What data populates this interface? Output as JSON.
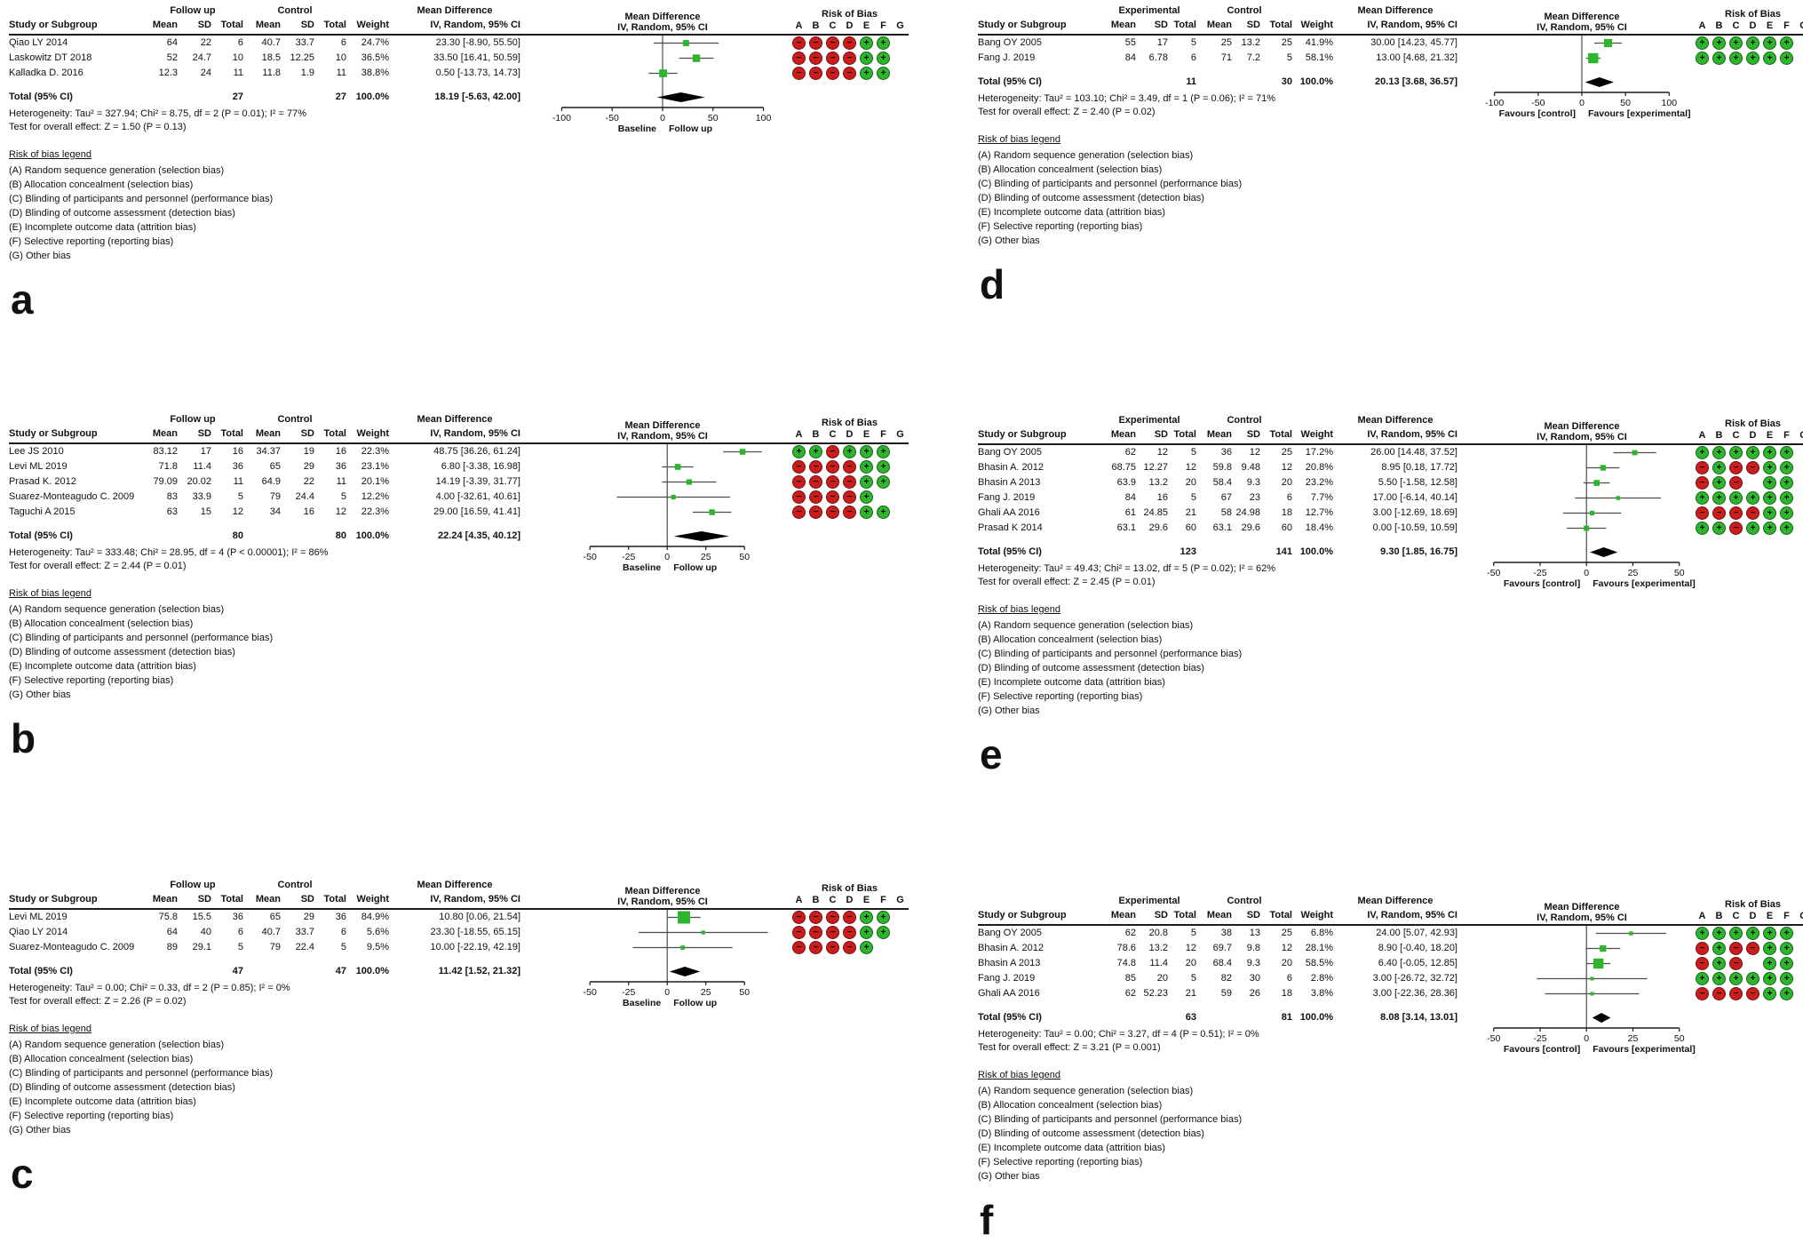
{
  "colors": {
    "square": "#2db52d",
    "ci_line": "#4d4d4d",
    "diamond": "#000000",
    "axis": "#1c1c1c",
    "rob_plus": "#2db52d",
    "rob_minus": "#cc1d1d"
  },
  "headers": {
    "study": "Study or Subgroup",
    "mean": "Mean",
    "sd": "SD",
    "total": "Total",
    "weight": "Weight",
    "effect1": "Mean Difference",
    "effect2": "IV, Random, 95% CI",
    "rob": "Risk of Bias",
    "rob_cols": [
      "A",
      "B",
      "C",
      "D",
      "E",
      "F",
      "G"
    ]
  },
  "rob_legend": {
    "title": "Risk of bias legend",
    "items": [
      "(A) Random sequence generation (selection bias)",
      "(B) Allocation concealment (selection bias)",
      "(C) Blinding of participants and personnel (performance bias)",
      "(D) Blinding of outcome assessment (detection bias)",
      "(E) Incomplete outcome data (attrition bias)",
      "(F) Selective reporting (reporting bias)",
      "(G) Other bias"
    ]
  },
  "chart_data": [
    {
      "type": "forest",
      "panel": "a",
      "group1": "Follow up",
      "group2": "Control",
      "studies": [
        {
          "name": "Qiao LY 2014",
          "mean1": "64",
          "sd1": "22",
          "n1": "6",
          "mean2": "40.7",
          "sd2": "33.7",
          "n2": "6",
          "weight": "24.7%",
          "ci": "23.30 [-8.90, 55.50]",
          "est": 23.3,
          "lo": -8.9,
          "hi": 55.5,
          "w": 24.7,
          "rob": [
            "-",
            "-",
            "-",
            "-",
            "+",
            "+",
            null
          ]
        },
        {
          "name": "Laskowitz DT 2018",
          "mean1": "52",
          "sd1": "24.7",
          "n1": "10",
          "mean2": "18.5",
          "sd2": "12.25",
          "n2": "10",
          "weight": "36.5%",
          "ci": "33.50 [16.41, 50.59]",
          "est": 33.5,
          "lo": 16.41,
          "hi": 50.59,
          "w": 36.5,
          "rob": [
            "-",
            "-",
            "-",
            "-",
            "+",
            "+",
            null
          ]
        },
        {
          "name": "Kalladka D. 2016",
          "mean1": "12.3",
          "sd1": "24",
          "n1": "11",
          "mean2": "11.8",
          "sd2": "1.9",
          "n2": "11",
          "weight": "38.8%",
          "ci": "0.50 [-13.73, 14.73]",
          "est": 0.5,
          "lo": -13.73,
          "hi": 14.73,
          "w": 38.8,
          "rob": [
            "-",
            "-",
            "-",
            "-",
            "+",
            "+",
            null
          ]
        }
      ],
      "total": {
        "label": "Total (95% CI)",
        "n1": "27",
        "n2": "27",
        "weight": "100.0%",
        "ci": "18.19 [-5.63, 42.00]",
        "est": 18.19,
        "lo": -5.63,
        "hi": 42.0
      },
      "heterogeneity": "Heterogeneity: Tau² = 327.94; Chi² = 8.75, df = 2 (P = 0.01); I² = 77%",
      "test": "Test for overall effect: Z = 1.50 (P = 0.13)",
      "axis": {
        "ticks": [
          -100,
          -50,
          0,
          50,
          100
        ],
        "xlim": [
          -118,
          118
        ],
        "left": "Baseline",
        "right": "Follow up"
      }
    },
    {
      "type": "forest",
      "panel": "b",
      "group1": "Follow up",
      "group2": "Control",
      "studies": [
        {
          "name": "Lee JS 2010",
          "mean1": "83.12",
          "sd1": "17",
          "n1": "16",
          "mean2": "34.37",
          "sd2": "19",
          "n2": "16",
          "weight": "22.3%",
          "ci": "48.75 [36.26, 61.24]",
          "est": 48.75,
          "lo": 36.26,
          "hi": 61.24,
          "w": 22.3,
          "rob": [
            "+",
            "+",
            "-",
            "+",
            "+",
            "+",
            null
          ]
        },
        {
          "name": "Levi ML 2019",
          "mean1": "71.8",
          "sd1": "11.4",
          "n1": "36",
          "mean2": "65",
          "sd2": "29",
          "n2": "36",
          "weight": "23.1%",
          "ci": "6.80 [-3.38, 16.98]",
          "est": 6.8,
          "lo": -3.38,
          "hi": 16.98,
          "w": 23.1,
          "rob": [
            "-",
            "-",
            "-",
            "-",
            "+",
            "+",
            null
          ]
        },
        {
          "name": "Prasad K. 2012",
          "mean1": "79.09",
          "sd1": "20.02",
          "n1": "11",
          "mean2": "64.9",
          "sd2": "22",
          "n2": "11",
          "weight": "20.1%",
          "ci": "14.19 [-3.39, 31.77]",
          "est": 14.19,
          "lo": -3.39,
          "hi": 31.77,
          "w": 20.1,
          "rob": [
            "-",
            "-",
            "-",
            "-",
            "+",
            "+",
            null
          ]
        },
        {
          "name": "Suarez-Monteagudo C. 2009",
          "mean1": "83",
          "sd1": "33.9",
          "n1": "5",
          "mean2": "79",
          "sd2": "24.4",
          "n2": "5",
          "weight": "12.2%",
          "ci": "4.00 [-32.61, 40.61]",
          "est": 4.0,
          "lo": -32.61,
          "hi": 40.61,
          "w": 12.2,
          "rob": [
            "-",
            "-",
            "-",
            "-",
            "+",
            null,
            null
          ]
        },
        {
          "name": "Taguchi A 2015",
          "mean1": "63",
          "sd1": "15",
          "n1": "12",
          "mean2": "34",
          "sd2": "16",
          "n2": "12",
          "weight": "22.3%",
          "ci": "29.00 [16.59, 41.41]",
          "est": 29.0,
          "lo": 16.59,
          "hi": 41.41,
          "w": 22.3,
          "rob": [
            "-",
            "-",
            "-",
            "-",
            "+",
            "+",
            null
          ]
        }
      ],
      "total": {
        "label": "Total (95% CI)",
        "n1": "80",
        "n2": "80",
        "weight": "100.0%",
        "ci": "22.24 [4.35, 40.12]",
        "est": 22.24,
        "lo": 4.35,
        "hi": 40.12
      },
      "heterogeneity": "Heterogeneity: Tau² = 333.48; Chi² = 28.95, df = 4 (P < 0.00001); I² = 86%",
      "test": "Test for overall effect: Z = 2.44 (P = 0.01)",
      "axis": {
        "ticks": [
          -50,
          -25,
          0,
          25,
          50
        ],
        "xlim": [
          -80,
          74
        ],
        "left": "Baseline",
        "right": "Follow up"
      }
    },
    {
      "type": "forest",
      "panel": "c",
      "group1": "Follow up",
      "group2": "Control",
      "studies": [
        {
          "name": "Levi ML 2019",
          "mean1": "75.8",
          "sd1": "15.5",
          "n1": "36",
          "mean2": "65",
          "sd2": "29",
          "n2": "36",
          "weight": "84.9%",
          "ci": "10.80 [0.06, 21.54]",
          "est": 10.8,
          "lo": 0.06,
          "hi": 21.54,
          "w": 84.9,
          "rob": [
            "-",
            "-",
            "-",
            "-",
            "+",
            "+",
            null
          ]
        },
        {
          "name": "Qiao LY 2014",
          "mean1": "64",
          "sd1": "40",
          "n1": "6",
          "mean2": "40.7",
          "sd2": "33.7",
          "n2": "6",
          "weight": "5.6%",
          "ci": "23.30 [-18.55, 65.15]",
          "est": 23.3,
          "lo": -18.55,
          "hi": 65.15,
          "w": 5.6,
          "rob": [
            "-",
            "-",
            "-",
            "-",
            "+",
            "+",
            null
          ]
        },
        {
          "name": "Suarez-Monteagudo C. 2009",
          "mean1": "89",
          "sd1": "29.1",
          "n1": "5",
          "mean2": "79",
          "sd2": "22.4",
          "n2": "5",
          "weight": "9.5%",
          "ci": "10.00 [-22.19, 42.19]",
          "est": 10.0,
          "lo": -22.19,
          "hi": 42.19,
          "w": 9.5,
          "rob": [
            "-",
            "-",
            "-",
            "-",
            "+",
            null,
            null
          ]
        }
      ],
      "total": {
        "label": "Total (95% CI)",
        "n1": "47",
        "n2": "47",
        "weight": "100.0%",
        "ci": "11.42 [1.52, 21.32]",
        "est": 11.42,
        "lo": 1.52,
        "hi": 21.32
      },
      "heterogeneity": "Heterogeneity: Tau² = 0.00; Chi² = 0.33, df = 2 (P = 0.85); I² = 0%",
      "test": "Test for overall effect: Z = 2.26 (P = 0.02)",
      "axis": {
        "ticks": [
          -50,
          -25,
          0,
          25,
          50
        ],
        "xlim": [
          -80,
          74
        ],
        "left": "Baseline",
        "right": "Follow up"
      }
    },
    {
      "type": "forest",
      "panel": "d",
      "group1": "Experimental",
      "group2": "Control",
      "studies": [
        {
          "name": "Bang OY 2005",
          "mean1": "55",
          "sd1": "17",
          "n1": "5",
          "mean2": "25",
          "sd2": "13.2",
          "n2": "25",
          "weight": "41.9%",
          "ci": "30.00 [14.23, 45.77]",
          "est": 30.0,
          "lo": 14.23,
          "hi": 45.77,
          "w": 41.9,
          "rob": [
            "+",
            "+",
            "+",
            "+",
            "+",
            "+",
            null
          ]
        },
        {
          "name": "Fang J. 2019",
          "mean1": "84",
          "sd1": "6.78",
          "n1": "6",
          "mean2": "71",
          "sd2": "7.2",
          "n2": "5",
          "weight": "58.1%",
          "ci": "13.00 [4.68, 21.32]",
          "est": 13.0,
          "lo": 4.68,
          "hi": 21.32,
          "w": 58.1,
          "rob": [
            "+",
            "+",
            "+",
            "+",
            "+",
            "+",
            null
          ]
        }
      ],
      "total": {
        "label": "Total (95% CI)",
        "n1": "11",
        "n2": "30",
        "weight": "100.0%",
        "ci": "20.13 [3.68, 36.57]",
        "est": 20.13,
        "lo": 3.68,
        "hi": 36.57
      },
      "heterogeneity": "Heterogeneity: Tau² = 103.10; Chi² = 3.49, df = 1 (P = 0.06); I² = 71%",
      "test": "Test for overall effect: Z = 2.40 (P = 0.02)",
      "axis": {
        "ticks": [
          -100,
          -50,
          0,
          50,
          100
        ],
        "xlim": [
          -118,
          118
        ],
        "left": "Favours [control]",
        "right": "Favours [experimental]"
      }
    },
    {
      "type": "forest",
      "panel": "e",
      "group1": "Experimental",
      "group2": "Control",
      "studies": [
        {
          "name": "Bang OY 2005",
          "mean1": "62",
          "sd1": "12",
          "n1": "5",
          "mean2": "36",
          "sd2": "12",
          "n2": "25",
          "weight": "17.2%",
          "ci": "26.00 [14.48, 37.52]",
          "est": 26.0,
          "lo": 14.48,
          "hi": 37.52,
          "w": 17.2,
          "rob": [
            "+",
            "+",
            "+",
            "+",
            "+",
            "+",
            null
          ]
        },
        {
          "name": "Bhasin A. 2012",
          "mean1": "68.75",
          "sd1": "12.27",
          "n1": "12",
          "mean2": "59.8",
          "sd2": "9.48",
          "n2": "12",
          "weight": "20.8%",
          "ci": "8.95 [0.18, 17.72]",
          "est": 8.95,
          "lo": 0.18,
          "hi": 17.72,
          "w": 20.8,
          "rob": [
            "-",
            "+",
            "-",
            "-",
            "+",
            "+",
            null
          ]
        },
        {
          "name": "Bhasin A 2013",
          "mean1": "63.9",
          "sd1": "13.2",
          "n1": "20",
          "mean2": "58.4",
          "sd2": "9.3",
          "n2": "20",
          "weight": "23.2%",
          "ci": "5.50 [-1.58, 12.58]",
          "est": 5.5,
          "lo": -1.58,
          "hi": 12.58,
          "w": 23.2,
          "rob": [
            "-",
            "+",
            "-",
            null,
            "+",
            "+",
            null
          ]
        },
        {
          "name": "Fang J. 2019",
          "mean1": "84",
          "sd1": "16",
          "n1": "5",
          "mean2": "67",
          "sd2": "23",
          "n2": "6",
          "weight": "7.7%",
          "ci": "17.00 [-6.14, 40.14]",
          "est": 17.0,
          "lo": -6.14,
          "hi": 40.14,
          "w": 7.7,
          "rob": [
            "+",
            "+",
            "+",
            "+",
            "+",
            "+",
            null
          ]
        },
        {
          "name": "Ghali AA 2016",
          "mean1": "61",
          "sd1": "24.85",
          "n1": "21",
          "mean2": "58",
          "sd2": "24.98",
          "n2": "18",
          "weight": "12.7%",
          "ci": "3.00 [-12.69, 18.69]",
          "est": 3.0,
          "lo": -12.69,
          "hi": 18.69,
          "w": 12.7,
          "rob": [
            "-",
            "-",
            "-",
            "-",
            "+",
            "+",
            null
          ]
        },
        {
          "name": "Prasad K 2014",
          "mean1": "63.1",
          "sd1": "29.6",
          "n1": "60",
          "mean2": "63.1",
          "sd2": "29.6",
          "n2": "60",
          "weight": "18.4%",
          "ci": "0.00 [-10.59, 10.59]",
          "est": 0.0,
          "lo": -10.59,
          "hi": 10.59,
          "w": 18.4,
          "rob": [
            "+",
            "+",
            "-",
            "+",
            "+",
            "+",
            null
          ]
        }
      ],
      "total": {
        "label": "Total (95% CI)",
        "n1": "123",
        "n2": "141",
        "weight": "100.0%",
        "ci": "9.30 [1.85, 16.75]",
        "est": 9.3,
        "lo": 1.85,
        "hi": 16.75
      },
      "heterogeneity": "Heterogeneity: Tau² = 49.43; Chi² = 13.02, df = 5 (P = 0.02); I² = 62%",
      "test": "Test for overall effect: Z = 2.45 (P = 0.01)",
      "axis": {
        "ticks": [
          -50,
          -25,
          0,
          25,
          50
        ],
        "xlim": [
          -58,
          53
        ],
        "left": "Favours [control]",
        "right": "Favours [experimental]"
      }
    },
    {
      "type": "forest",
      "panel": "f",
      "group1": "Experimental",
      "group2": "Control",
      "studies": [
        {
          "name": "Bang OY 2005",
          "mean1": "62",
          "sd1": "20.8",
          "n1": "5",
          "mean2": "38",
          "sd2": "13",
          "n2": "25",
          "weight": "6.8%",
          "ci": "24.00 [5.07, 42.93]",
          "est": 24.0,
          "lo": 5.07,
          "hi": 42.93,
          "w": 6.8,
          "rob": [
            "+",
            "+",
            "+",
            "+",
            "+",
            "+",
            null
          ]
        },
        {
          "name": "Bhasin A. 2012",
          "mean1": "78.6",
          "sd1": "13.2",
          "n1": "12",
          "mean2": "69.7",
          "sd2": "9.8",
          "n2": "12",
          "weight": "28.1%",
          "ci": "8.90 [-0.40, 18.20]",
          "est": 8.9,
          "lo": -0.4,
          "hi": 18.2,
          "w": 28.1,
          "rob": [
            "-",
            "+",
            "-",
            "-",
            "+",
            "+",
            null
          ]
        },
        {
          "name": "Bhasin A 2013",
          "mean1": "74.8",
          "sd1": "11.4",
          "n1": "20",
          "mean2": "68.4",
          "sd2": "9.3",
          "n2": "20",
          "weight": "58.5%",
          "ci": "6.40 [-0.05, 12.85]",
          "est": 6.4,
          "lo": -0.05,
          "hi": 12.85,
          "w": 58.5,
          "rob": [
            "-",
            "+",
            "-",
            null,
            "+",
            "+",
            null
          ]
        },
        {
          "name": "Fang J. 2019",
          "mean1": "85",
          "sd1": "20",
          "n1": "5",
          "mean2": "82",
          "sd2": "30",
          "n2": "6",
          "weight": "2.8%",
          "ci": "3.00 [-26.72, 32.72]",
          "est": 3.0,
          "lo": -26.72,
          "hi": 32.72,
          "w": 2.8,
          "rob": [
            "+",
            "+",
            "+",
            "+",
            "+",
            "+",
            null
          ]
        },
        {
          "name": "Ghali AA 2016",
          "mean1": "62",
          "sd1": "52.23",
          "n1": "21",
          "mean2": "59",
          "sd2": "26",
          "n2": "18",
          "weight": "3.8%",
          "ci": "3.00 [-22.36, 28.36]",
          "est": 3.0,
          "lo": -22.36,
          "hi": 28.36,
          "w": 3.8,
          "rob": [
            "-",
            "-",
            "-",
            "-",
            "+",
            "+",
            null
          ]
        }
      ],
      "total": {
        "label": "Total (95% CI)",
        "n1": "63",
        "n2": "81",
        "weight": "100.0%",
        "ci": "8.08 [3.14, 13.01]",
        "est": 8.08,
        "lo": 3.14,
        "hi": 13.01
      },
      "heterogeneity": "Heterogeneity: Tau² = 0.00; Chi² = 3.27, df = 4 (P = 0.51); I² = 0%",
      "test": "Test for overall effect: Z = 3.21 (P = 0.001)",
      "axis": {
        "ticks": [
          -50,
          -25,
          0,
          25,
          50
        ],
        "xlim": [
          -58,
          53
        ],
        "left": "Favours [control]",
        "right": "Favours [experimental]"
      }
    }
  ]
}
